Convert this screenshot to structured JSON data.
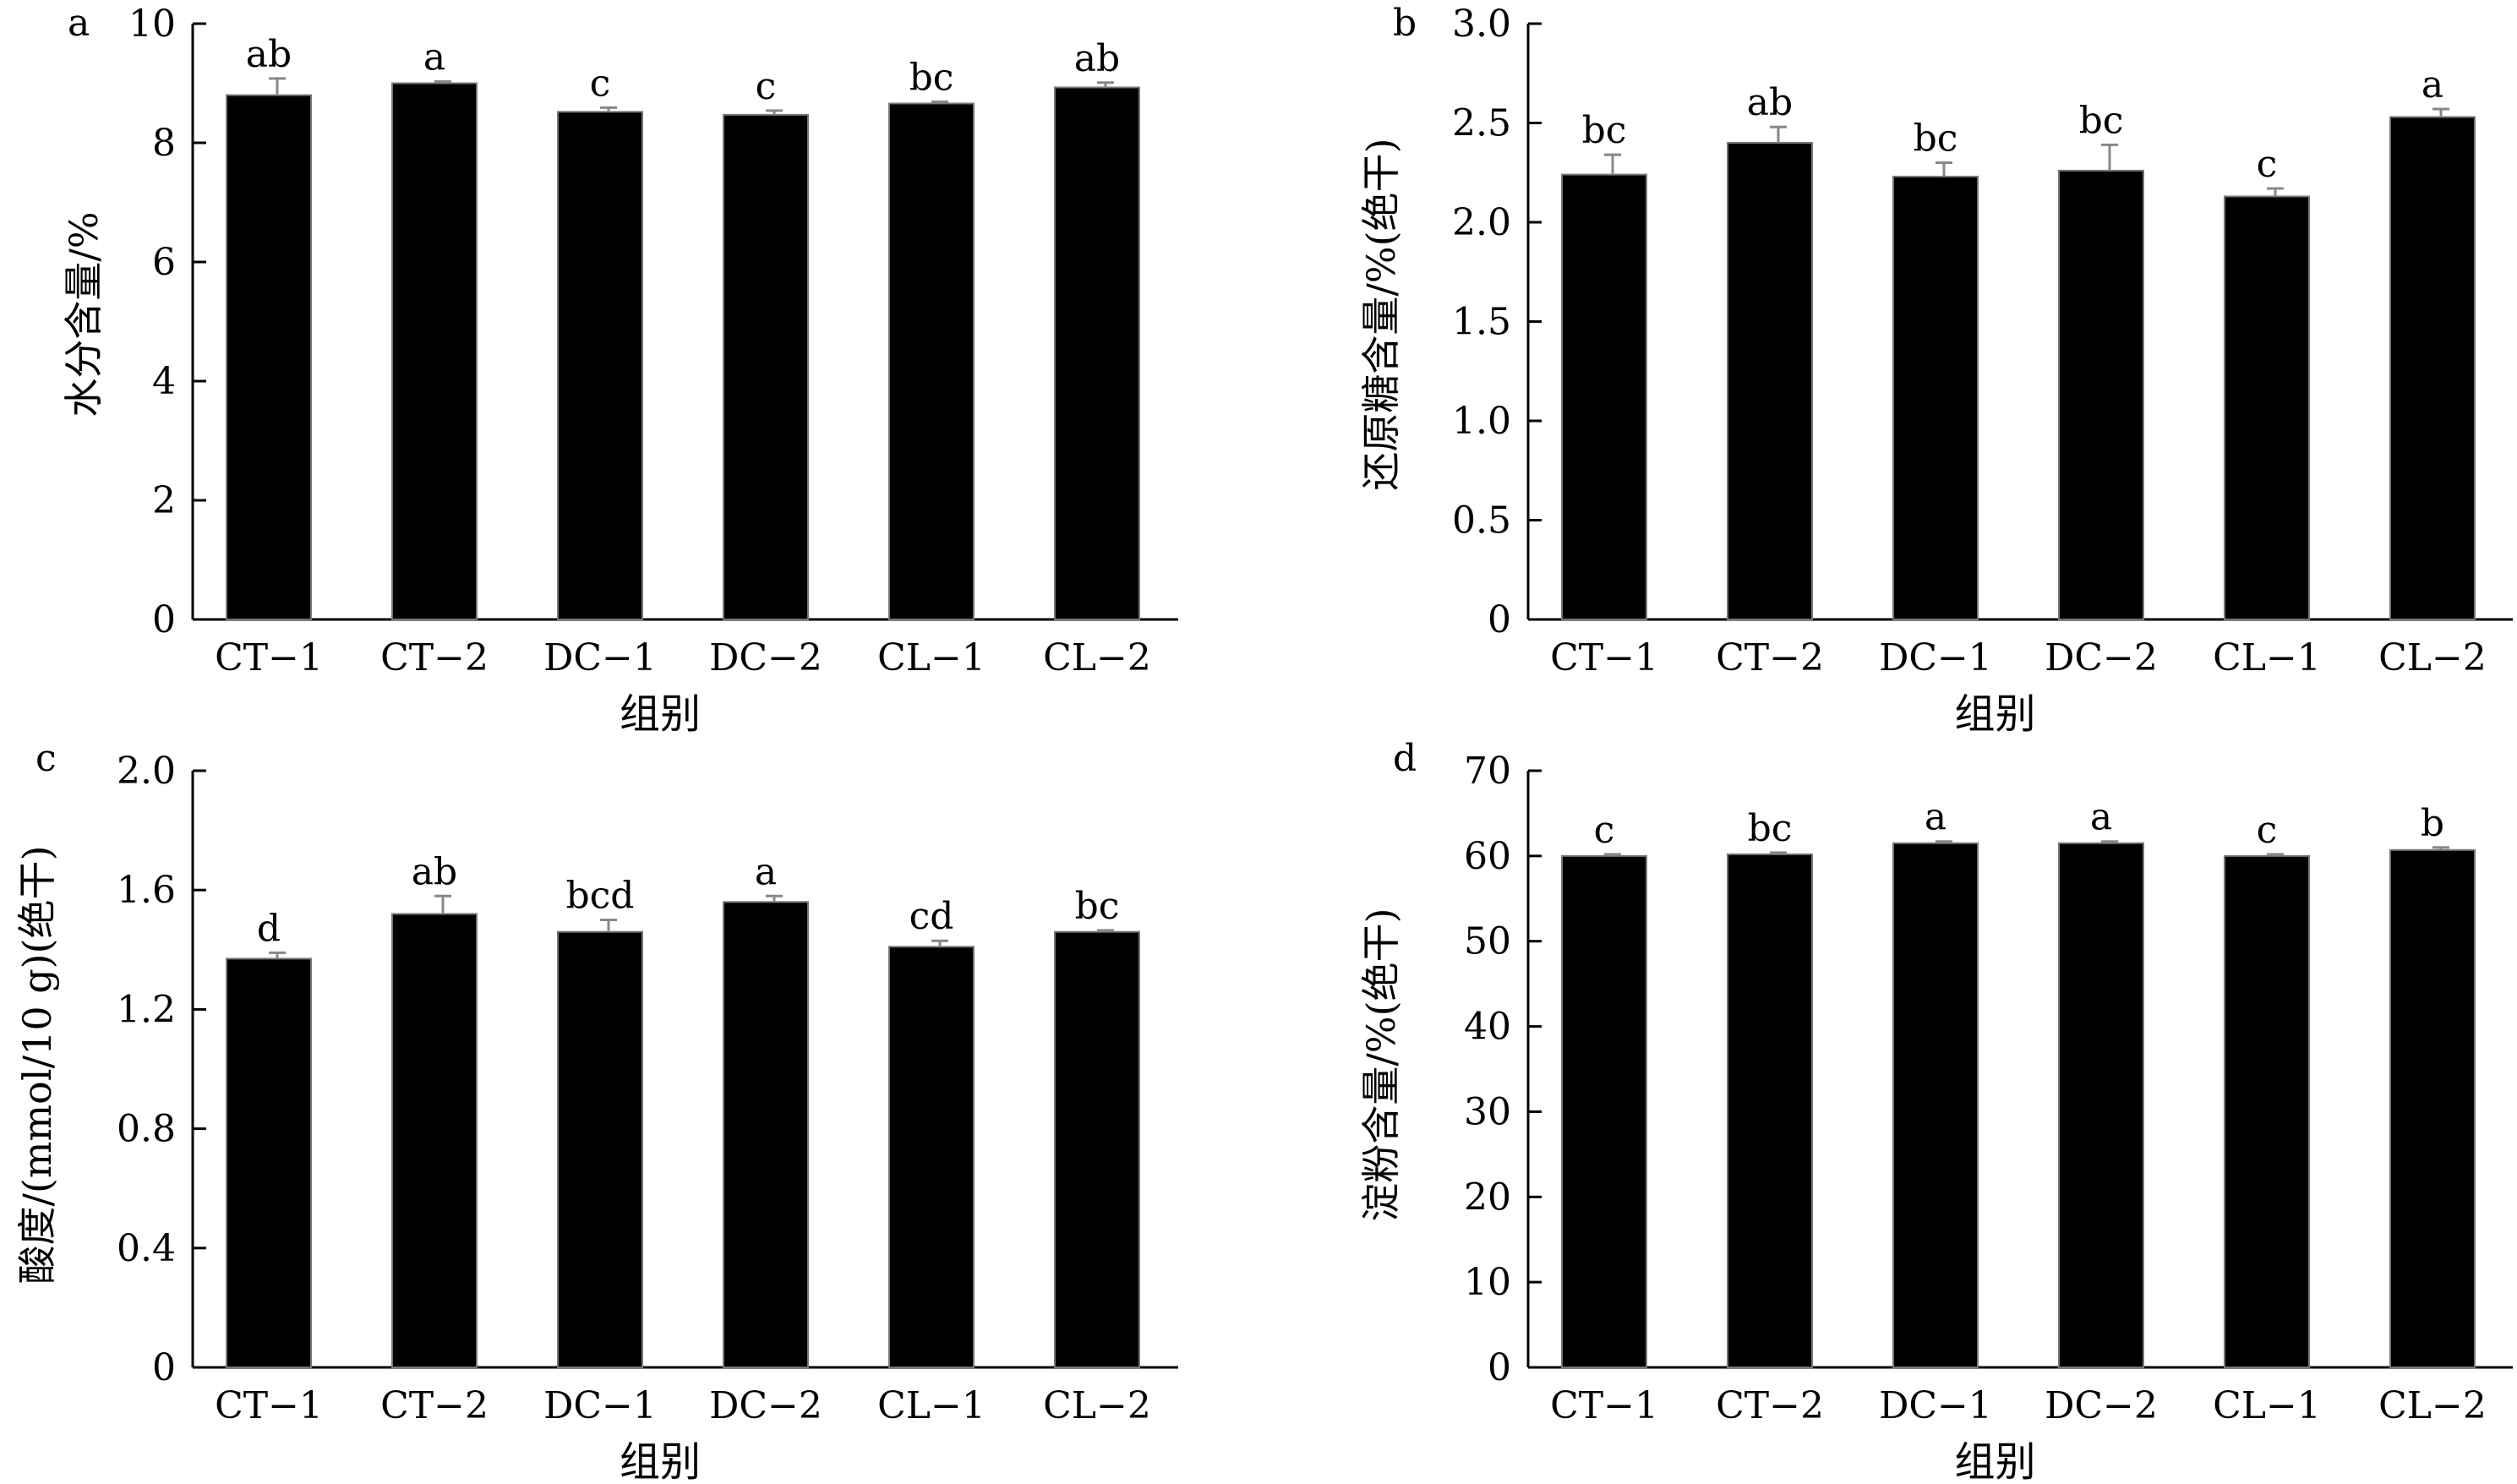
{
  "chart_data": [
    {
      "panel": "a",
      "type": "bar",
      "categories": [
        "CT−1",
        "CT−2",
        "DC−1",
        "DC−2",
        "CL−1",
        "CL−2"
      ],
      "values": [
        8.8,
        9.0,
        8.52,
        8.47,
        8.66,
        8.93
      ],
      "errors": [
        0.28,
        0.03,
        0.07,
        0.07,
        0.03,
        0.08
      ],
      "letters": [
        "ab",
        "a",
        "c",
        "c",
        "bc",
        "ab"
      ],
      "ylim": [
        0,
        10
      ],
      "yticks": [
        "0",
        "2",
        "4",
        "6",
        "8",
        "10"
      ],
      "ylabel": "水分含量/%",
      "xlabel": "组别"
    },
    {
      "panel": "b",
      "type": "bar",
      "categories": [
        "CT−1",
        "CT−2",
        "DC−1",
        "DC−2",
        "CL−1",
        "CL−2"
      ],
      "values": [
        2.24,
        2.4,
        2.23,
        2.26,
        2.13,
        2.53
      ],
      "errors": [
        0.1,
        0.08,
        0.07,
        0.13,
        0.04,
        0.04
      ],
      "letters": [
        "bc",
        "ab",
        "bc",
        "bc",
        "c",
        "a"
      ],
      "ylim": [
        0,
        3
      ],
      "yticks": [
        "0",
        "0.5",
        "1.0",
        "1.5",
        "2.0",
        "2.5",
        "3.0"
      ],
      "ylabel": "还原糖含量/%(绝干)",
      "xlabel": "组别"
    },
    {
      "panel": "c",
      "type": "bar",
      "categories": [
        "CT−1",
        "CT−2",
        "DC−1",
        "DC−2",
        "CL−1",
        "CL−2"
      ],
      "values": [
        1.37,
        1.52,
        1.46,
        1.56,
        1.41,
        1.46
      ],
      "errors": [
        0.02,
        0.06,
        0.04,
        0.02,
        0.02,
        0.005
      ],
      "letters": [
        "d",
        "ab",
        "bcd",
        "a",
        "cd",
        "bc"
      ],
      "ylim": [
        0,
        2
      ],
      "yticks": [
        "0",
        "0.4",
        "0.8",
        "1.2",
        "1.6",
        "2.0"
      ],
      "ylabel": "酸度/(mmol/10 g)(绝干)",
      "xlabel": "组别"
    },
    {
      "panel": "d",
      "type": "bar",
      "categories": [
        "CT−1",
        "CT−2",
        "DC−1",
        "DC−2",
        "CL−1",
        "CL−2"
      ],
      "values": [
        60.0,
        60.2,
        61.5,
        61.5,
        60.0,
        60.7
      ],
      "errors": [
        0.2,
        0.2,
        0.2,
        0.2,
        0.2,
        0.3
      ],
      "letters": [
        "c",
        "bc",
        "a",
        "a",
        "c",
        "b"
      ],
      "ylim": [
        0,
        70
      ],
      "yticks": [
        "0",
        "10",
        "20",
        "30",
        "40",
        "50",
        "60",
        "70"
      ],
      "ylabel": "淀粉含量/%(绝干)",
      "xlabel": "组别"
    }
  ]
}
